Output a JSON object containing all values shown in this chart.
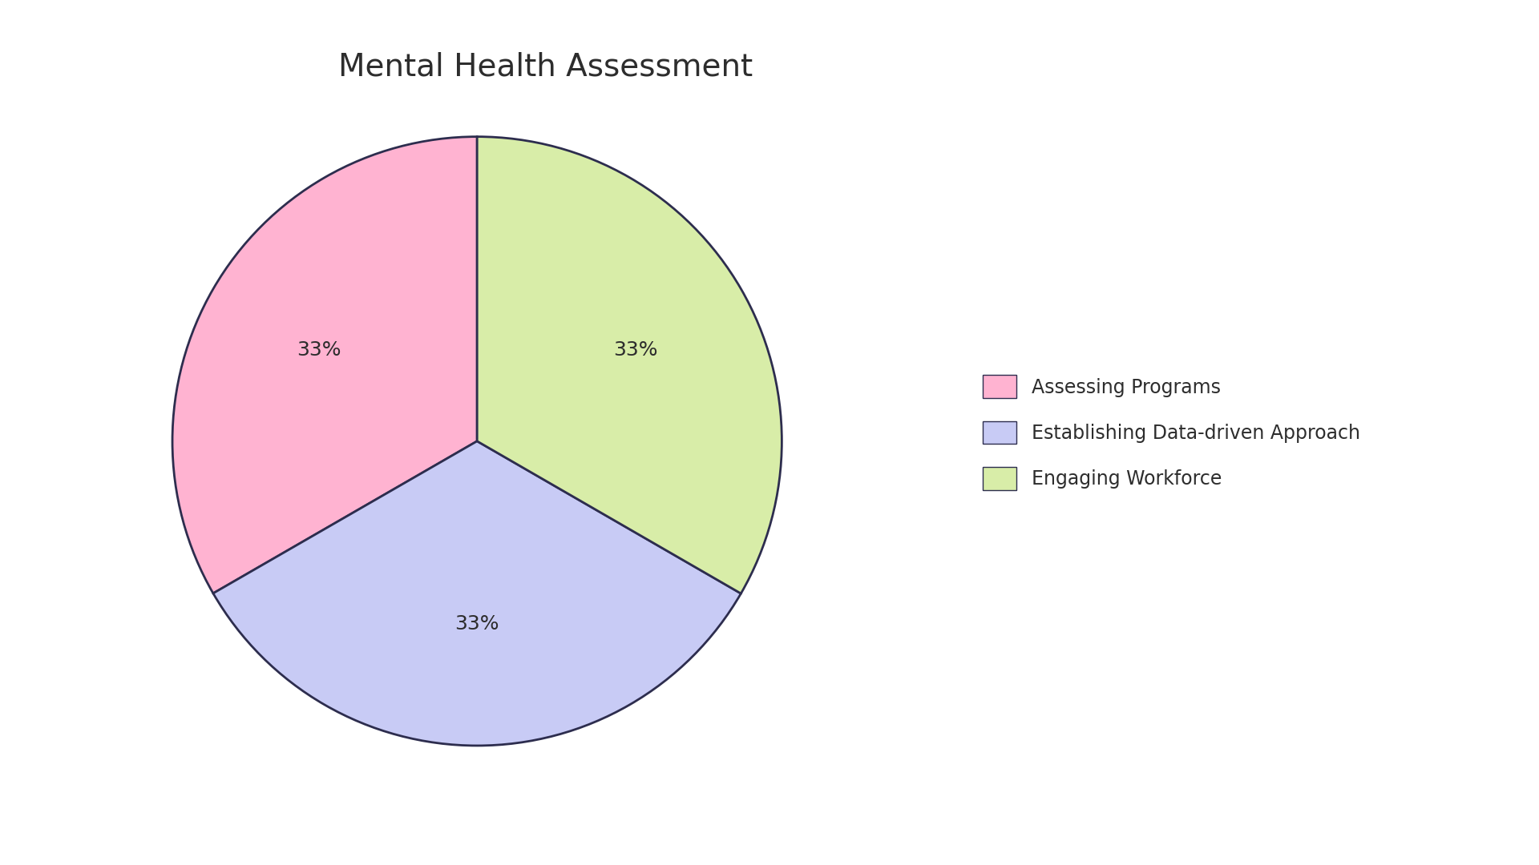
{
  "title": "Mental Health Assessment",
  "slices": [
    {
      "label": "Assessing Programs",
      "value": 33.33,
      "color": "#FFB3D1"
    },
    {
      "label": "Establishing Data-driven Approach",
      "value": 33.33,
      "color": "#C8CBF5"
    },
    {
      "label": "Engaging Workforce",
      "value": 33.34,
      "color": "#D8EDA8"
    }
  ],
  "title_fontsize": 28,
  "pct_fontsize": 18,
  "legend_fontsize": 17,
  "edge_color": "#2D2D4E",
  "edge_linewidth": 2.0,
  "background_color": "#FFFFFF",
  "text_color": "#2D2D2D",
  "startangle": 90,
  "pctdistance": 0.6
}
